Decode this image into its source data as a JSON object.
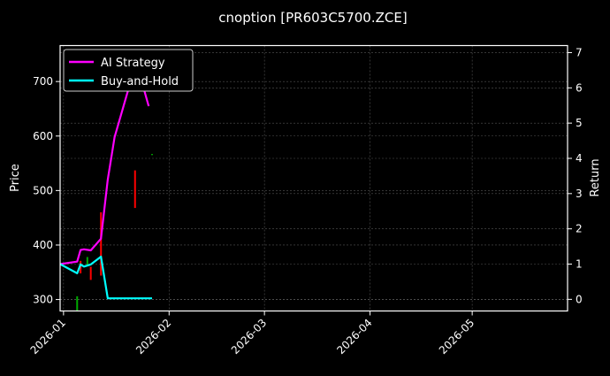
{
  "chart_data": {
    "type": "line",
    "title": "cnoption [PR603C5700.ZCE]",
    "ylabel": "Price",
    "y2label": "Return",
    "xlim": [
      "2025-12-31",
      "2026-05-29"
    ],
    "ylim": [
      279,
      766
    ],
    "y2lim": [
      -0.33,
      7.2
    ],
    "xticks": [
      {
        "date": "2026-01-01",
        "label": "2026-01"
      },
      {
        "date": "2026-02-01",
        "label": "2026-02"
      },
      {
        "date": "2026-03-01",
        "label": "2026-03"
      },
      {
        "date": "2026-04-01",
        "label": "2026-04"
      },
      {
        "date": "2026-05-01",
        "label": "2026-05"
      }
    ],
    "yticks": [
      "300",
      "400",
      "500",
      "600",
      "700"
    ],
    "y2ticks": [
      "0",
      "1",
      "2",
      "3",
      "4",
      "5",
      "6",
      "7"
    ],
    "grid": true,
    "legend_placement": "top-left",
    "series": [
      {
        "name": "AI Strategy",
        "axis": "right",
        "color": "#ff00ff",
        "x": [
          "2025-12-31",
          "2026-01-05",
          "2026-01-06",
          "2026-01-07",
          "2026-01-09",
          "2026-01-12",
          "2026-01-14",
          "2026-01-16",
          "2026-01-20",
          "2026-01-22",
          "2026-01-26"
        ],
        "values": [
          1.0,
          1.07,
          1.4,
          1.42,
          1.39,
          1.72,
          3.4,
          4.6,
          5.94,
          6.85,
          5.48
        ]
      },
      {
        "name": "Buy-and-Hold",
        "axis": "right",
        "color": "#00ffff",
        "x": [
          "2025-12-31",
          "2026-01-05",
          "2026-01-06",
          "2026-01-07",
          "2026-01-09",
          "2026-01-12",
          "2026-01-14",
          "2026-01-27"
        ],
        "values": [
          1.0,
          0.74,
          0.99,
          0.93,
          0.99,
          1.21,
          0.03,
          0.03
        ]
      }
    ],
    "candles": [
      {
        "date": "2026-01-05",
        "high": 306,
        "low": 279,
        "color": "#00aa00"
      },
      {
        "date": "2026-01-06",
        "high": 371,
        "low": 348,
        "color": "#ff0000"
      },
      {
        "date": "2026-01-08",
        "high": 378,
        "low": 363,
        "color": "#00aa00"
      },
      {
        "date": "2026-01-09",
        "high": 360,
        "low": 336,
        "color": "#ff0000"
      },
      {
        "date": "2026-01-12",
        "high": 460,
        "low": 344,
        "color": "#ff0000"
      },
      {
        "date": "2026-01-22",
        "high": 537,
        "low": 468,
        "color": "#ff0000"
      },
      {
        "date": "2026-01-27",
        "high": 567,
        "low": 565,
        "color": "#00aa00"
      }
    ]
  }
}
